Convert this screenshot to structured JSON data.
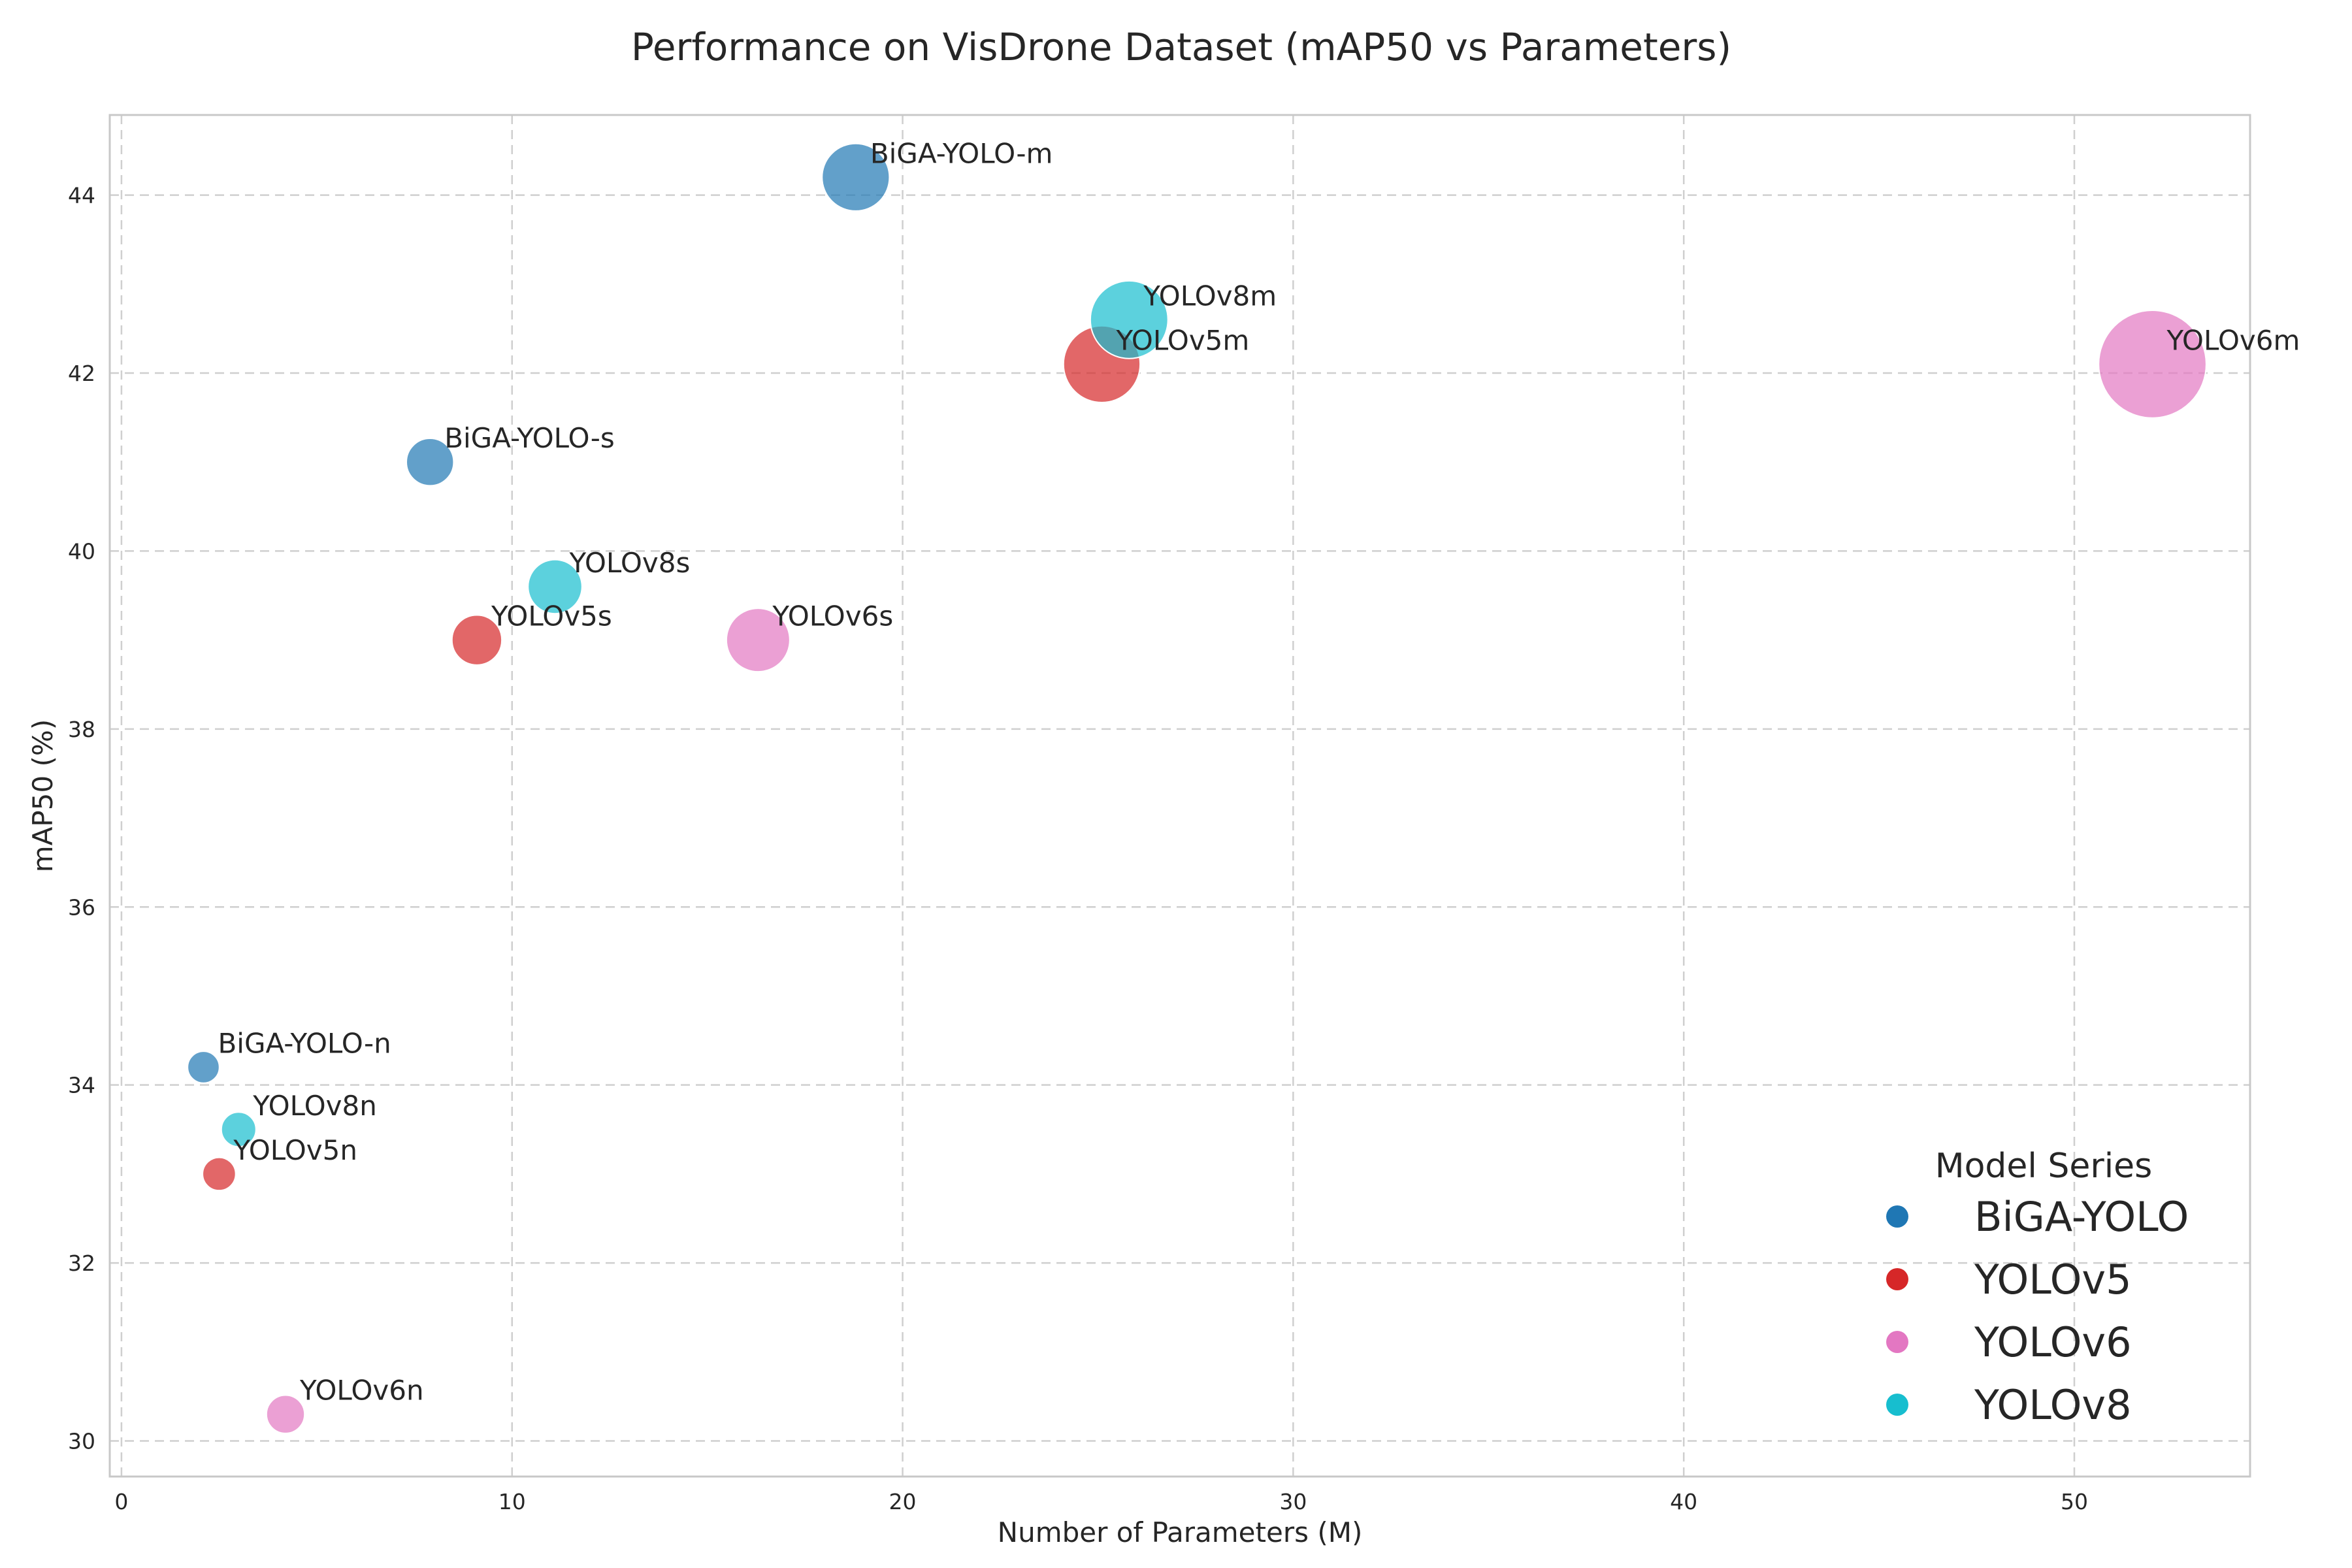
{
  "chart_data": {
    "type": "scatter",
    "title": "Performance on VisDrone Dataset (mAP50 vs Parameters)",
    "xlabel": "Number of Parameters (M)",
    "ylabel": "mAP50 (%)",
    "xlim": [
      -0.3,
      54.5
    ],
    "ylim": [
      29.6,
      44.9
    ],
    "xticks": [
      0,
      10,
      20,
      30,
      40,
      50
    ],
    "yticks": [
      30,
      32,
      34,
      36,
      38,
      40,
      42,
      44
    ],
    "grid": true,
    "marker_size_encodes": "Number of Parameters (M)",
    "legend": {
      "title": "Model Series",
      "placement": "bottom-right",
      "entries": [
        {
          "name": "BiGA-YOLO",
          "color": "#1f77b4"
        },
        {
          "name": "YOLOv5",
          "color": "#d62728"
        },
        {
          "name": "YOLOv6",
          "color": "#e377c2"
        },
        {
          "name": "YOLOv8",
          "color": "#17becf"
        }
      ]
    },
    "series": [
      {
        "name": "BiGA-YOLO",
        "color": "#1f77b4",
        "points": [
          {
            "label": "BiGA-YOLO-n",
            "x": 2.1,
            "y": 34.2
          },
          {
            "label": "BiGA-YOLO-s",
            "x": 7.9,
            "y": 41.0
          },
          {
            "label": "BiGA-YOLO-m",
            "x": 18.8,
            "y": 44.2
          }
        ]
      },
      {
        "name": "YOLOv5",
        "color": "#d62728",
        "points": [
          {
            "label": "YOLOv5n",
            "x": 2.5,
            "y": 33.0
          },
          {
            "label": "YOLOv5s",
            "x": 9.1,
            "y": 39.0
          },
          {
            "label": "YOLOv5m",
            "x": 25.1,
            "y": 42.1
          }
        ]
      },
      {
        "name": "YOLOv6",
        "color": "#e377c2",
        "points": [
          {
            "label": "YOLOv6n",
            "x": 4.2,
            "y": 30.3
          },
          {
            "label": "YOLOv6s",
            "x": 16.3,
            "y": 39.0
          },
          {
            "label": "YOLOv6m",
            "x": 52.0,
            "y": 42.1
          }
        ]
      },
      {
        "name": "YOLOv8",
        "color": "#17becf",
        "points": [
          {
            "label": "YOLOv8n",
            "x": 3.0,
            "y": 33.5
          },
          {
            "label": "YOLOv8s",
            "x": 11.1,
            "y": 39.6
          },
          {
            "label": "YOLOv8m",
            "x": 25.8,
            "y": 42.6
          }
        ]
      }
    ]
  }
}
